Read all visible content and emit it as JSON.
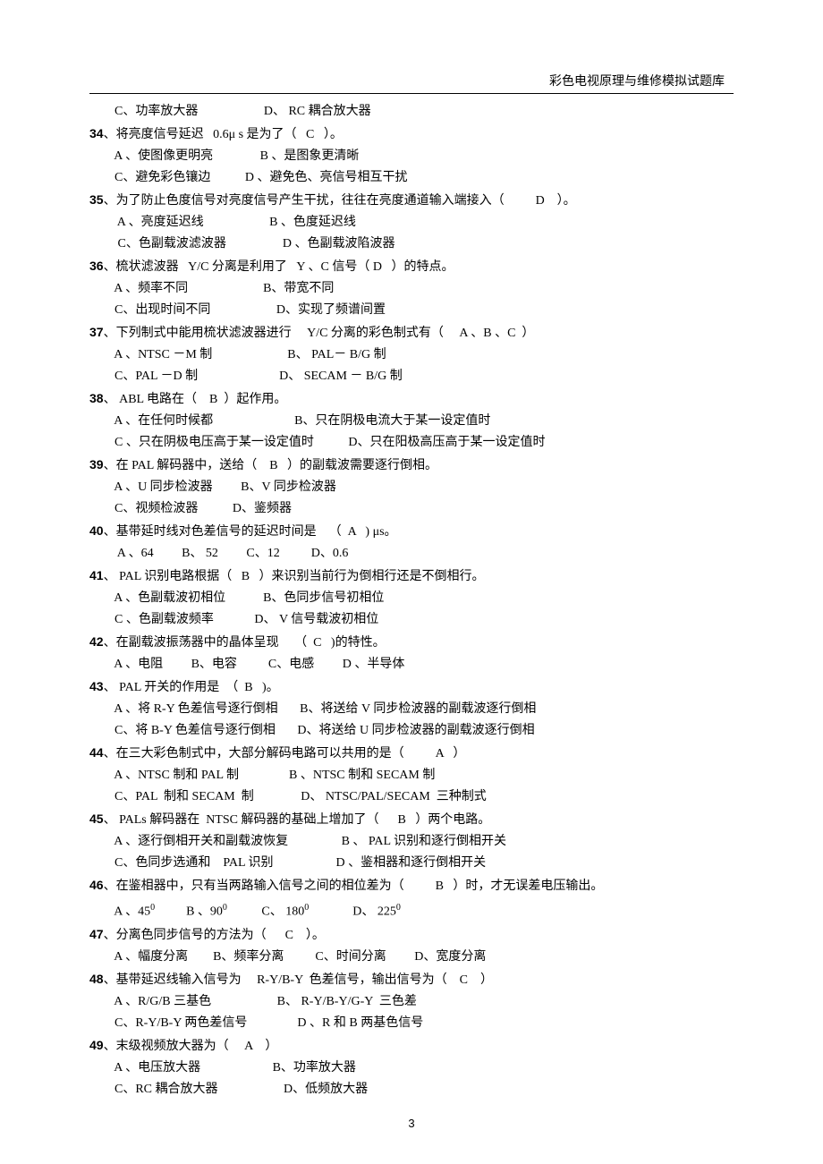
{
  "header": {
    "title": "彩色电视原理与维修模拟试题库"
  },
  "footer": {
    "page_number": "3"
  },
  "questions": [
    {
      "num": "",
      "lines": [
        "        C、功率放大器                     D、 RC 耦合放大器"
      ]
    },
    {
      "num": "34",
      "stem": "、将亮度信号延迟   0.6μ s 是为了（   C   ）。",
      "lines": [
        "        A 、使图像更明亮               B 、是图象更清晰",
        "        C、避免彩色镶边           D 、避免色、亮信号相互干扰"
      ]
    },
    {
      "num": "35",
      "stem": "、为了防止色度信号对亮度信号产生干扰，往往在亮度通道输入端接入（          D    ）。",
      "lines": [
        "         A 、亮度延迟线                     B 、色度延迟线",
        "         C、色副载波滤波器                  D 、色副载波陷波器"
      ]
    },
    {
      "num": "36",
      "stem": "、梳状滤波器   Y/C 分离是利用了   Y 、C 信号（ D   ）的特点。",
      "lines": [
        "        A 、频率不同                        B、带宽不同",
        "        C、出现时间不同                     D、实现了频谱间置"
      ]
    },
    {
      "num": "37",
      "stem": "、下列制式中能用梳状滤波器进行     Y/C 分离的彩色制式有（     A 、B 、C  ）",
      "lines": [
        "        A 、NTSC －M 制                        B、 PAL－ B/G 制",
        "        C、PAL －D 制                          D、 SECAM － B/G 制"
      ]
    },
    {
      "num": "38",
      "stem": "、 ABL 电路在（    B  ）起作用。",
      "lines": [
        "        A 、在任何时候都                          B、只在阴极电流大于某一设定值时",
        "        C 、只在阴极电压高于某一设定值时           D、只在阳极高压高于某一设定值时"
      ]
    },
    {
      "num": "39",
      "stem": "、在 PAL 解码器中，送给（    B   ）的副载波需要逐行倒相。",
      "lines": [
        "        A 、U 同步检波器         B、V 同步检波器",
        "        C、视频检波器           D、鉴频器"
      ]
    },
    {
      "num": "40",
      "stem": "、基带延时线对色差信号的延迟时间是    （  A   ) μs。",
      "lines": [
        "         A 、64         B、 52         C、12          D、0.6"
      ]
    },
    {
      "num": "41",
      "stem": "、 PAL 识别电路根据（   B   ）来识别当前行为倒相行还是不倒相行。",
      "lines": [
        "        A 、色副载波初相位            B、色同步信号初相位",
        "        C 、色副载波频率             D、 V 信号载波初相位"
      ]
    },
    {
      "num": "42",
      "stem": "、在副载波振荡器中的晶体呈现     （  C   )的特性。",
      "lines": [
        "        A 、电阻         B、电容          C、电感         D 、半导体"
      ]
    },
    {
      "num": "43",
      "stem": "、 PAL 开关的作用是  （  B   )。",
      "lines": [
        "        A 、将 R-Y 色差信号逐行倒相       B、将送给 V 同步检波器的副载波逐行倒相",
        "        C、将 B-Y 色差信号逐行倒相       D、将送给 U 同步检波器的副载波逐行倒相"
      ]
    },
    {
      "num": "44",
      "stem": "、在三大彩色制式中，大部分解码电路可以共用的是（          A   ）",
      "lines": [
        "        A 、NTSC 制和 PAL 制                B 、NTSC 制和 SECAM 制",
        "        C、PAL  制和 SECAM  制               D、 NTSC/PAL/SECAM  三种制式"
      ]
    },
    {
      "num": "45",
      "stem": "、 PALs 解码器在  NTSC 解码器的基础上增加了（      B   ）两个电路。",
      "lines": [
        "        A 、逐行倒相开关和副载波恢复                 B 、 PAL 识别和逐行倒相开关",
        "        C、色同步选通和    PAL 识别                    D 、鉴相器和逐行倒相开关"
      ]
    },
    {
      "num": "46",
      "stem_html": "、在鉴相器中，只有当两路输入信号之间的相位差为（          B   ）时，才无误差电压输出。",
      "lines_html": [
        "        A 、45<sup>0</sup>          B 、90<sup>0</sup>           C、 180<sup>0</sup>              D、 225<sup>0</sup>"
      ]
    },
    {
      "num": "47",
      "stem": "、分离色同步信号的方法为（      C    ）。",
      "lines": [
        "        A 、幅度分离        B、频率分离          C、时间分离         D、宽度分离"
      ]
    },
    {
      "num": "48",
      "stem": "、基带延迟线输入信号为     R-Y/B-Y  色差信号，输出信号为（    C    ）",
      "lines": [
        "        A 、R/G/B 三基色                     B、 R-Y/B-Y/G-Y  三色差",
        "        C、R-Y/B-Y 两色差信号                D 、R 和 B 两基色信号"
      ]
    },
    {
      "num": "49",
      "stem": "、末级视频放大器为（     A    ）",
      "lines": [
        "        A 、电压放大器                       B、功率放大器",
        "        C、RC 耦合放大器                     D、低频放大器"
      ]
    }
  ]
}
